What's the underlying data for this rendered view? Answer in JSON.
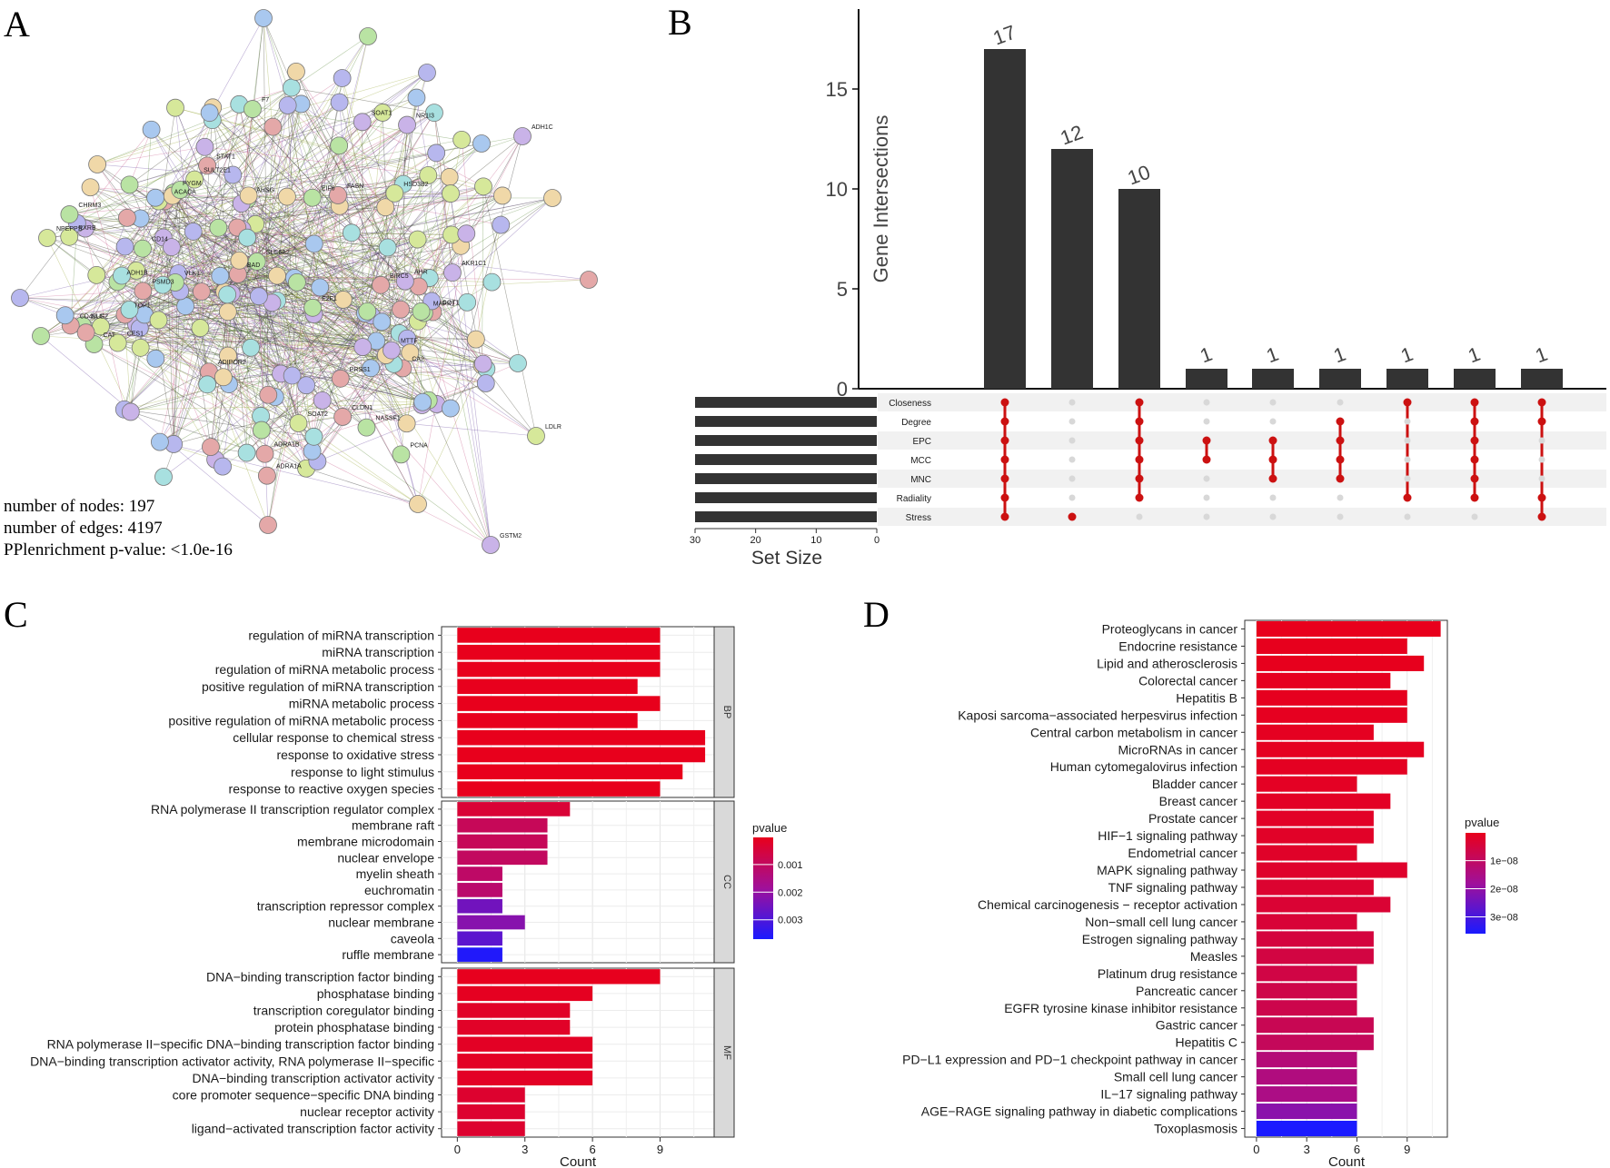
{
  "panels": {
    "A": "A",
    "B": "B",
    "C": "C",
    "D": "D"
  },
  "network": {
    "stats": [
      "number of nodes: 197",
      "number of edges: 4197",
      "PPlenrichment p-value: <1.0e-16"
    ],
    "labels": [
      "HSD3B2",
      "SOAT1",
      "SOAT2",
      "AKR1C1",
      "CES1",
      "NR1I3",
      "SULT2E1",
      "AHR",
      "RXRB",
      "MTTF",
      "NPEPPS",
      "ADH1C",
      "LDLR",
      "GSTM2",
      "ADH1B",
      "ACACA",
      "AHSG",
      "CA2",
      "PCNA",
      "ADIPOR2",
      "PYGM",
      "GOT1",
      "CAT",
      "ADRA1B",
      "SLC6A2",
      "ADRA1A",
      "NUF2",
      "BIRC5",
      "E2F1",
      "BAD",
      "EIF6",
      "PSMD3",
      "F7",
      "PRSS1",
      "CD14",
      "CD40LG",
      "CHRM3",
      "STAT1",
      "MAPK1",
      "CLDN1",
      "NASSF1",
      "FASN",
      "VLK1",
      "TOP1"
    ]
  },
  "chart_data": [
    {
      "type": "bar",
      "panel": "B",
      "title": "",
      "ylabel": "Gene Intersections",
      "ylim": [
        0,
        19
      ],
      "yticks": [
        0,
        5,
        10,
        15
      ],
      "values": [
        17,
        12,
        10,
        1,
        1,
        1,
        1,
        1,
        1
      ],
      "value_labels": [
        "17",
        "12",
        "10",
        "1",
        "1",
        "1",
        "1",
        "1",
        "1"
      ],
      "sets": [
        "Closeness",
        "Degree",
        "EPC",
        "MCC",
        "MNC",
        "Radiality",
        "Stress"
      ],
      "set_sizes": [
        30,
        30,
        30,
        30,
        30,
        30,
        30
      ],
      "set_size_label": "Set Size",
      "set_size_ticks": [
        30,
        20,
        10,
        0
      ],
      "membership": [
        [
          0,
          1,
          2,
          3,
          4,
          5,
          6
        ],
        [
          6
        ],
        [
          0,
          1,
          2,
          3,
          4,
          5
        ],
        [
          2,
          3
        ],
        [
          2,
          3,
          4
        ],
        [
          1,
          2,
          3,
          4
        ],
        [
          0,
          5
        ],
        [
          0,
          1,
          2,
          3,
          4,
          5
        ],
        [
          0,
          1,
          5,
          6
        ]
      ],
      "colors": {
        "bar": "#333333",
        "dot_on": "#cc1111",
        "dot_off": "#d8d8d8"
      }
    },
    {
      "type": "bar",
      "panel": "C",
      "orientation": "horizontal",
      "xlabel": "Count",
      "xlim": [
        -0.7,
        11.4
      ],
      "xticks": [
        0,
        3,
        6,
        9
      ],
      "legend_title": "pvalue",
      "legend_ticks": [
        0.001,
        0.002,
        0.003
      ],
      "legend_tick_labels": [
        "0.001",
        "0.002",
        "0.003"
      ],
      "legend_range": [
        2e-05,
        0.0037
      ],
      "groups": [
        {
          "name": "BP",
          "categories": [
            "regulation of miRNA transcription",
            "miRNA transcription",
            "regulation of miRNA metabolic process",
            "positive regulation of miRNA transcription",
            "miRNA metabolic process",
            "positive regulation of miRNA metabolic process",
            "cellular response to chemical stress",
            "response to oxidative stress",
            "response to light stimulus",
            "response to reactive oxygen species"
          ],
          "values": [
            9,
            9,
            9,
            8,
            9,
            8,
            11,
            11,
            10,
            9
          ],
          "pvalues": [
            2e-05,
            2e-05,
            2e-05,
            3e-05,
            2e-05,
            3e-05,
            2e-05,
            2e-05,
            2e-05,
            2e-05
          ]
        },
        {
          "name": "CC",
          "categories": [
            "RNA polymerase II transcription regulator complex",
            "membrane raft",
            "membrane microdomain",
            "nuclear envelope",
            "myelin sheath",
            "euchromatin",
            "transcription repressor complex",
            "nuclear membrane",
            "caveola",
            "ruffle membrane"
          ],
          "values": [
            5,
            4,
            4,
            4,
            2,
            2,
            2,
            3,
            2,
            2
          ],
          "pvalues": [
            0.0004,
            0.0009,
            0.0009,
            0.001,
            0.0011,
            0.0012,
            0.0025,
            0.0022,
            0.0028,
            0.0036
          ]
        },
        {
          "name": "MF",
          "categories": [
            "DNA−binding transcription factor binding",
            "phosphatase binding",
            "transcription coregulator binding",
            "protein phosphatase binding",
            "RNA polymerase II−specific DNA−binding transcription factor binding",
            "DNA−binding transcription activator activity, RNA polymerase II−specific",
            "DNA−binding transcription activator activity",
            "core promoter sequence−specific DNA binding",
            "nuclear receptor activity",
            "ligand−activated transcription factor activity"
          ],
          "values": [
            9,
            6,
            5,
            5,
            6,
            6,
            6,
            3,
            3,
            3
          ],
          "pvalues": [
            5e-05,
            0.0001,
            0.0002,
            0.0002,
            0.00015,
            0.00015,
            0.00015,
            0.0003,
            0.0003,
            0.0003
          ]
        }
      ]
    },
    {
      "type": "bar",
      "panel": "D",
      "orientation": "horizontal",
      "xlabel": "Count",
      "xlim": [
        -0.7,
        11.4
      ],
      "xticks": [
        0,
        3,
        6,
        9
      ],
      "legend_title": "pvalue",
      "legend_ticks": [
        1e-08,
        2e-08,
        3e-08
      ],
      "legend_tick_labels": [
        "1e−08",
        "2e−08",
        "3e−08"
      ],
      "legend_range": [
        1e-10,
        3.6e-08
      ],
      "categories": [
        "Proteoglycans in cancer",
        "Endocrine resistance",
        "Lipid and atherosclerosis",
        "Colorectal cancer",
        "Hepatitis B",
        "Kaposi sarcoma−associated herpesvirus infection",
        "Central carbon metabolism in cancer",
        "MicroRNAs in cancer",
        "Human cytomegalovirus infection",
        "Bladder cancer",
        "Breast cancer",
        "Prostate cancer",
        "HIF−1 signaling pathway",
        "Endometrial cancer",
        "MAPK signaling pathway",
        "TNF signaling pathway",
        "Chemical carcinogenesis − receptor activation",
        "Non−small cell lung cancer",
        "Estrogen signaling pathway",
        "Measles",
        "Platinum drug resistance",
        "Pancreatic cancer",
        "EGFR tyrosine kinase inhibitor resistance",
        "Gastric cancer",
        "Hepatitis C",
        "PD−L1 expression and PD−1 checkpoint pathway in cancer",
        "Small cell lung cancer",
        "IL−17 signaling pathway",
        "AGE−RAGE signaling pathway in diabetic complications",
        "Toxoplasmosis"
      ],
      "values": [
        11,
        9,
        10,
        8,
        9,
        9,
        7,
        10,
        9,
        6,
        8,
        7,
        7,
        6,
        9,
        7,
        8,
        6,
        7,
        7,
        6,
        6,
        6,
        7,
        7,
        6,
        6,
        6,
        6,
        6
      ],
      "pvalues": [
        1e-10,
        3e-10,
        3e-10,
        5e-10,
        5e-10,
        6e-10,
        8e-10,
        8e-10,
        1e-09,
        1.2e-09,
        1.4e-09,
        1.6e-09,
        1.8e-09,
        2e-09,
        2.4e-09,
        3e-09,
        3.5e-09,
        4e-09,
        5e-09,
        5.5e-09,
        6e-09,
        6.5e-09,
        7e-09,
        8e-09,
        9e-09,
        1.3e-08,
        1.4e-08,
        1.5e-08,
        2.1e-08,
        3.6e-08
      ]
    }
  ]
}
